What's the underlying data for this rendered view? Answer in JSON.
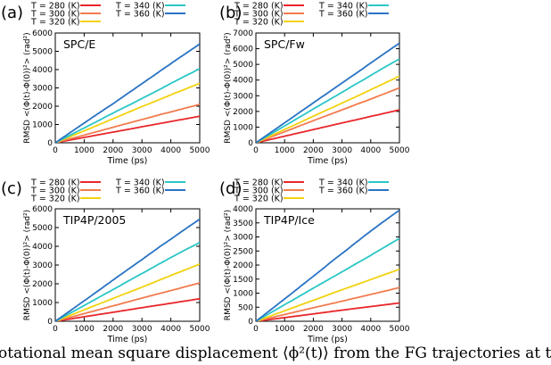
{
  "caption": "otational mean square displacement ⟨ϕ²(t)⟩ from the FG trajectories at t",
  "colors": {
    "T280": "#e8262a",
    "T300": "#f27b4e",
    "T320": "#f2d20f",
    "T340": "#2ac6c6",
    "T360": "#2a73c4"
  },
  "chart_data": [
    {
      "type": "line",
      "panel_label": "(a)",
      "title": "SPC/E",
      "xlabel": "Time (ps)",
      "ylabel": "RMSD <(Φ(t)-Φ(0))²> (rad²)",
      "xlim": [
        0,
        5000
      ],
      "ylim": [
        0,
        6000
      ],
      "xticks": [
        "0",
        "1000",
        "2000",
        "3000",
        "4000",
        "5000"
      ],
      "yticks": [
        "0",
        "1000",
        "2000",
        "3000",
        "4000",
        "5000",
        "6000"
      ],
      "legend": "top-outside",
      "x": [
        0,
        5000
      ],
      "series": [
        {
          "name": "T = 280 (K)",
          "color": "#e8262a",
          "values": [
            0,
            1450
          ]
        },
        {
          "name": "T = 300 (K)",
          "color": "#f27b4e",
          "values": [
            0,
            2100
          ]
        },
        {
          "name": "T = 320 (K)",
          "color": "#f2d20f",
          "values": [
            0,
            3250
          ]
        },
        {
          "name": "T = 340 (K)",
          "color": "#2ac6c6",
          "values": [
            0,
            4050
          ]
        },
        {
          "name": "T = 360 (K)",
          "color": "#2a73c4",
          "values": [
            0,
            5400
          ]
        }
      ]
    },
    {
      "type": "line",
      "panel_label": "(b)",
      "title": "SPC/Fw",
      "xlabel": "Time (ps)",
      "ylabel": "RMSD <(Φ(t)-Φ(0))²> (rad²)",
      "xlim": [
        0,
        5000
      ],
      "ylim": [
        0,
        7000
      ],
      "xticks": [
        "0",
        "1000",
        "2000",
        "3000",
        "4000",
        "5000"
      ],
      "yticks": [
        "0",
        "1000",
        "2000",
        "3000",
        "4000",
        "5000",
        "6000",
        "7000"
      ],
      "legend": "top-outside",
      "x": [
        0,
        5000
      ],
      "series": [
        {
          "name": "T = 280 (K)",
          "color": "#e8262a",
          "values": [
            0,
            2100
          ]
        },
        {
          "name": "T = 300 (K)",
          "color": "#f27b4e",
          "values": [
            0,
            3500
          ]
        },
        {
          "name": "T = 320 (K)",
          "color": "#f2d20f",
          "values": [
            0,
            4250
          ]
        },
        {
          "name": "T = 340 (K)",
          "color": "#2ac6c6",
          "values": [
            0,
            5350
          ]
        },
        {
          "name": "T = 360 (K)",
          "color": "#2a73c4",
          "values": [
            0,
            6350
          ]
        }
      ]
    },
    {
      "type": "line",
      "panel_label": "(c)",
      "title": "TIP4P/2005",
      "xlabel": "Time (ps)",
      "ylabel": "RMSD <(Φ(t)-Φ(0))²> (rad²)",
      "xlim": [
        0,
        5000
      ],
      "ylim": [
        0,
        6000
      ],
      "xticks": [
        "0",
        "1000",
        "2000",
        "3000",
        "4000",
        "5000"
      ],
      "yticks": [
        "0",
        "1000",
        "2000",
        "3000",
        "4000",
        "5000",
        "6000"
      ],
      "legend": "top-outside",
      "x": [
        0,
        5000
      ],
      "series": [
        {
          "name": "T = 280 (K)",
          "color": "#e8262a",
          "values": [
            0,
            1200
          ]
        },
        {
          "name": "T = 300 (K)",
          "color": "#f27b4e",
          "values": [
            0,
            2050
          ]
        },
        {
          "name": "T = 320 (K)",
          "color": "#f2d20f",
          "values": [
            0,
            3050
          ]
        },
        {
          "name": "T = 340 (K)",
          "color": "#2ac6c6",
          "values": [
            0,
            4200
          ]
        },
        {
          "name": "T = 360 (K)",
          "color": "#2a73c4",
          "values": [
            0,
            5450
          ]
        }
      ]
    },
    {
      "type": "line",
      "panel_label": "(d)",
      "title": "TIP4P/Ice",
      "xlabel": "Time (ps)",
      "ylabel": "RMSD <(Φ(t)-Φ(0))²> (rad²)",
      "xlim": [
        0,
        5000
      ],
      "ylim": [
        0,
        4000
      ],
      "xticks": [
        "0",
        "1000",
        "2000",
        "3000",
        "4000",
        "5000"
      ],
      "yticks": [
        "0",
        "500",
        "1000",
        "1500",
        "2000",
        "2500",
        "3000",
        "3500",
        "4000"
      ],
      "legend": "top-outside",
      "x": [
        0,
        5000
      ],
      "series": [
        {
          "name": "T = 280 (K)",
          "color": "#e8262a",
          "values": [
            0,
            650
          ]
        },
        {
          "name": "T = 300 (K)",
          "color": "#f27b4e",
          "values": [
            0,
            1200
          ]
        },
        {
          "name": "T = 320 (K)",
          "color": "#f2d20f",
          "values": [
            0,
            1850
          ]
        },
        {
          "name": "T = 340 (K)",
          "color": "#2ac6c6",
          "values": [
            0,
            2950
          ]
        },
        {
          "name": "T = 360 (K)",
          "color": "#2a73c4",
          "values": [
            0,
            3950
          ]
        }
      ]
    }
  ]
}
